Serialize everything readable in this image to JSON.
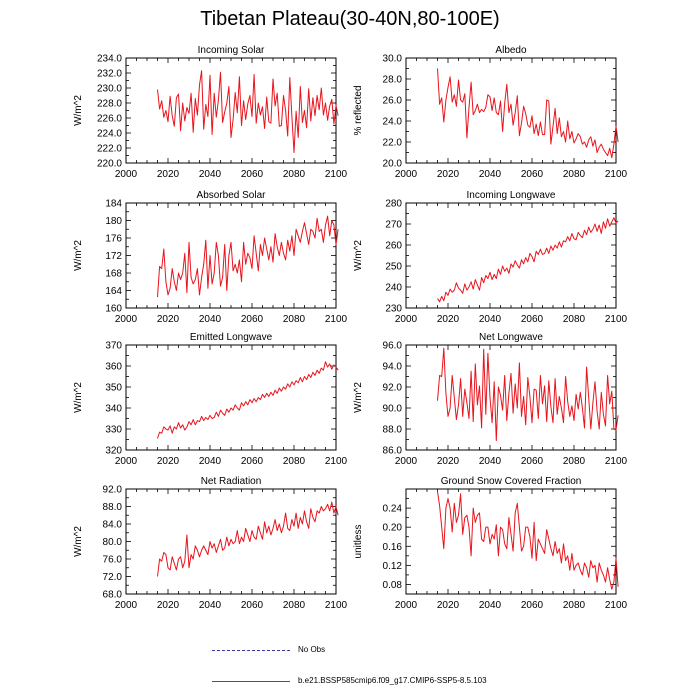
{
  "figure": {
    "title": "Tibetan Plateau(30-40N,80-100E)",
    "line_color": "#e8141c",
    "obs_color": "#3a3aa0"
  },
  "legend": {
    "obs_label": "No Obs",
    "model_label": "b.e21.BSSP585cmip6.f09_g17.CMIP6-SSP5-8.5.103"
  },
  "chart_data": [
    {
      "type": "line",
      "title": "Incoming Solar",
      "ylabel": "W/m^2",
      "xlabel": "",
      "xlim": [
        2000,
        2100
      ],
      "ylim": [
        220,
        234
      ],
      "xticks": [
        2000,
        2020,
        2040,
        2060,
        2080,
        2100
      ],
      "yticks": [
        220,
        222,
        224,
        226,
        228,
        230,
        232,
        234
      ],
      "ytick_labels": [
        "220.0",
        "222.0",
        "224.0",
        "226.0",
        "228.0",
        "230.0",
        "232.0",
        "234.0"
      ],
      "x_start": 2015,
      "values": [
        229.8,
        227.2,
        228.3,
        226.1,
        227.0,
        225.5,
        228.9,
        226.3,
        224.9,
        228.7,
        229.2,
        224.3,
        228.0,
        225.6,
        227.4,
        226.6,
        229.3,
        224.1,
        228.6,
        226.4,
        230.4,
        232.3,
        224.5,
        227.8,
        226.2,
        231.7,
        223.8,
        229.3,
        226.1,
        228.4,
        232.1,
        225.4,
        226.8,
        228.0,
        230.2,
        223.4,
        225.8,
        229.4,
        226.7,
        231.5,
        225.0,
        228.3,
        225.8,
        227.9,
        229.0,
        226.2,
        231.8,
        225.3,
        228.0,
        226.4,
        227.5,
        224.6,
        228.8,
        225.5,
        225.3,
        231.2,
        227.6,
        229.3,
        224.9,
        225.0,
        229.0,
        227.0,
        223.6,
        231.4,
        226.2,
        221.4,
        226.9,
        223.4,
        230.2,
        225.4,
        227.0,
        224.7,
        229.9,
        225.6,
        228.7,
        226.3,
        229.0,
        227.1,
        230.0,
        226.4,
        228.0,
        225.7,
        227.6,
        228.5,
        225.2,
        227.7,
        226.3
      ]
    },
    {
      "type": "line",
      "title": "Albedo",
      "ylabel": "% reflected",
      "xlabel": "",
      "xlim": [
        2000,
        2100
      ],
      "ylim": [
        20,
        30
      ],
      "xticks": [
        2000,
        2020,
        2040,
        2060,
        2080,
        2100
      ],
      "yticks": [
        20,
        22,
        24,
        26,
        28,
        30
      ],
      "ytick_labels": [
        "20.0",
        "22.0",
        "24.0",
        "26.0",
        "28.0",
        "30.0"
      ],
      "x_start": 2015,
      "values": [
        29.0,
        25.6,
        26.2,
        23.9,
        26.0,
        27.2,
        28.2,
        25.8,
        26.5,
        25.4,
        27.9,
        26.0,
        25.8,
        26.6,
        22.4,
        25.3,
        27.7,
        24.6,
        25.0,
        25.6,
        24.8,
        25.1,
        24.9,
        25.3,
        26.5,
        26.3,
        25.0,
        26.2,
        24.8,
        24.6,
        25.9,
        23.0,
        25.7,
        27.5,
        24.8,
        25.6,
        23.6,
        24.8,
        26.4,
        22.6,
        23.8,
        25.4,
        24.7,
        23.6,
        23.4,
        24.5,
        22.8,
        23.7,
        22.6,
        23.9,
        22.7,
        22.7,
        26.0,
        25.9,
        21.8,
        23.5,
        25.2,
        22.8,
        24.3,
        22.5,
        23.0,
        22.0,
        24.0,
        22.3,
        23.0,
        21.9,
        22.3,
        22.8,
        22.5,
        21.8,
        22.0,
        21.5,
        22.2,
        22.5,
        21.6,
        22.2,
        21.0,
        21.5,
        21.8,
        21.3,
        21.0,
        20.7,
        21.4,
        20.5,
        21.8,
        23.5,
        22.0
      ]
    },
    {
      "type": "line",
      "title": "Absorbed Solar",
      "ylabel": "W/m^2",
      "xlabel": "",
      "xlim": [
        2000,
        2100
      ],
      "ylim": [
        160,
        184
      ],
      "xticks": [
        2000,
        2020,
        2040,
        2060,
        2080,
        2100
      ],
      "yticks": [
        160,
        164,
        168,
        172,
        176,
        180,
        184
      ],
      "ytick_labels": [
        "160",
        "164",
        "168",
        "172",
        "176",
        "180",
        "184"
      ],
      "x_start": 2015,
      "values": [
        162.5,
        169.5,
        169.0,
        173.5,
        166.0,
        163.0,
        164.5,
        169.0,
        166.0,
        164.0,
        168.0,
        166.5,
        168.0,
        172.5,
        163.5,
        175.0,
        167.0,
        165.5,
        166.5,
        169.0,
        163.0,
        167.0,
        170.0,
        175.5,
        164.5,
        172.0,
        165.5,
        168.0,
        175.0,
        172.0,
        165.0,
        167.0,
        174.5,
        164.0,
        172.0,
        175.0,
        168.5,
        170.0,
        168.0,
        171.0,
        166.0,
        175.0,
        170.0,
        172.5,
        171.5,
        169.0,
        176.5,
        172.5,
        168.5,
        174.5,
        172.0,
        176.0,
        173.5,
        171.0,
        174.0,
        170.5,
        177.0,
        174.0,
        172.0,
        175.0,
        172.5,
        171.0,
        175.5,
        173.0,
        176.5,
        172.0,
        178.0,
        176.5,
        175.0,
        177.5,
        179.5,
        177.0,
        174.5,
        178.0,
        177.5,
        176.0,
        180.5,
        177.5,
        178.0,
        175.0,
        179.0,
        181.0,
        176.5,
        180.0,
        179.0,
        174.5,
        178.0
      ]
    },
    {
      "type": "line",
      "title": "Incoming Longwave",
      "ylabel": "W/m^2",
      "xlabel": "",
      "xlim": [
        2000,
        2100
      ],
      "ylim": [
        230,
        280
      ],
      "xticks": [
        2000,
        2020,
        2040,
        2060,
        2080,
        2100
      ],
      "yticks": [
        230,
        240,
        250,
        260,
        270,
        280
      ],
      "ytick_labels": [
        "230",
        "240",
        "250",
        "260",
        "270",
        "280"
      ],
      "x_start": 2015,
      "values": [
        234.5,
        233.0,
        235.5,
        233.5,
        237.5,
        236.0,
        239.0,
        237.5,
        238.5,
        242.0,
        239.5,
        238.5,
        237.0,
        241.5,
        238.5,
        240.0,
        242.5,
        239.0,
        243.5,
        241.0,
        238.5,
        244.5,
        242.0,
        245.5,
        244.0,
        247.0,
        243.5,
        246.0,
        244.0,
        248.5,
        246.0,
        250.0,
        247.5,
        249.0,
        246.5,
        251.0,
        249.5,
        252.5,
        250.5,
        249.0,
        253.0,
        251.0,
        254.0,
        252.0,
        256.0,
        254.5,
        252.0,
        257.0,
        255.5,
        258.0,
        255.5,
        256.0,
        258.5,
        256.0,
        259.5,
        257.5,
        260.0,
        258.5,
        261.5,
        259.0,
        262.0,
        261.5,
        264.0,
        262.0,
        265.5,
        263.0,
        262.5,
        266.0,
        264.5,
        263.5,
        267.0,
        265.0,
        268.5,
        266.0,
        267.5,
        270.0,
        266.5,
        269.5,
        265.5,
        271.0,
        268.0,
        272.5,
        269.0,
        271.0,
        273.0,
        270.5,
        271.5
      ]
    },
    {
      "type": "line",
      "title": "Emitted Longwave",
      "ylabel": "W/m^2",
      "xlabel": "",
      "xlim": [
        2000,
        2100
      ],
      "ylim": [
        320,
        370
      ],
      "xticks": [
        2000,
        2020,
        2040,
        2060,
        2080,
        2100
      ],
      "yticks": [
        320,
        330,
        340,
        350,
        360,
        370
      ],
      "ytick_labels": [
        "320",
        "330",
        "340",
        "350",
        "360",
        "370"
      ],
      "x_start": 2015,
      "values": [
        325.5,
        328.5,
        328.0,
        331.0,
        330.0,
        329.5,
        331.5,
        328.0,
        331.0,
        330.0,
        333.0,
        330.5,
        332.0,
        329.5,
        331.0,
        333.5,
        332.0,
        334.5,
        332.0,
        334.0,
        333.5,
        336.0,
        334.0,
        335.5,
        334.5,
        336.5,
        335.0,
        335.5,
        338.0,
        336.0,
        339.0,
        337.5,
        336.5,
        339.5,
        338.0,
        340.0,
        339.0,
        341.5,
        340.0,
        339.0,
        342.5,
        341.0,
        343.0,
        341.5,
        344.0,
        342.5,
        344.5,
        343.0,
        345.0,
        344.0,
        346.5,
        345.0,
        347.0,
        345.5,
        347.5,
        346.0,
        348.5,
        347.0,
        349.5,
        348.0,
        350.0,
        349.0,
        351.5,
        350.0,
        352.5,
        351.0,
        353.0,
        352.0,
        354.5,
        352.5,
        355.0,
        353.5,
        356.0,
        354.5,
        357.0,
        355.5,
        358.0,
        356.5,
        359.0,
        358.0,
        362.0,
        359.5,
        361.0,
        358.5,
        360.5,
        359.5,
        358.0
      ]
    },
    {
      "type": "line",
      "title": "Net Longwave",
      "ylabel": "W/m^2",
      "xlabel": "",
      "xlim": [
        2000,
        2100
      ],
      "ylim": [
        86,
        96
      ],
      "xticks": [
        2000,
        2020,
        2040,
        2060,
        2080,
        2100
      ],
      "yticks": [
        86,
        88,
        90,
        92,
        94,
        96
      ],
      "ytick_labels": [
        "86.0",
        "88.0",
        "90.0",
        "92.0",
        "94.0",
        "96.0"
      ],
      "x_start": 2015,
      "values": [
        90.7,
        93.1,
        93.0,
        95.7,
        91.4,
        89.2,
        90.0,
        93.1,
        91.0,
        88.9,
        90.3,
        92.8,
        89.2,
        91.8,
        90.5,
        89.0,
        93.5,
        88.7,
        94.2,
        90.3,
        92.1,
        88.1,
        95.6,
        89.4,
        95.2,
        91.0,
        88.6,
        92.5,
        86.9,
        92.0,
        91.2,
        89.8,
        93.1,
        88.8,
        91.4,
        93.3,
        89.5,
        92.3,
        90.0,
        94.3,
        89.2,
        91.1,
        88.4,
        92.9,
        91.1,
        88.6,
        91.8,
        91.7,
        89.0,
        93.1,
        90.4,
        92.1,
        88.7,
        92.6,
        90.1,
        88.6,
        92.8,
        89.4,
        91.1,
        90.0,
        88.6,
        93.0,
        90.6,
        89.2,
        90.2,
        88.8,
        91.3,
        89.9,
        91.5,
        90.0,
        88.1,
        93.9,
        91.0,
        88.0,
        90.5,
        92.5,
        89.7,
        88.0,
        91.5,
        89.4,
        88.3,
        93.1,
        90.4,
        91.6,
        88.0,
        87.9,
        89.3
      ]
    },
    {
      "type": "line",
      "title": "Net Radiation",
      "ylabel": "W/m^2",
      "xlabel": "",
      "xlim": [
        2000,
        2100
      ],
      "ylim": [
        68,
        92
      ],
      "xticks": [
        2000,
        2020,
        2040,
        2060,
        2080,
        2100
      ],
      "yticks": [
        68,
        72,
        76,
        80,
        84,
        88,
        92
      ],
      "ytick_labels": [
        "68.0",
        "72.0",
        "76.0",
        "80.0",
        "84.0",
        "88.0",
        "92.0"
      ],
      "x_start": 2015,
      "values": [
        72.0,
        76.0,
        75.5,
        77.5,
        77.0,
        74.0,
        73.5,
        76.5,
        75.0,
        73.5,
        76.0,
        76.5,
        74.0,
        75.5,
        81.5,
        74.0,
        77.0,
        76.0,
        79.0,
        78.0,
        76.5,
        78.0,
        79.0,
        78.0,
        77.0,
        80.0,
        78.5,
        79.5,
        77.5,
        79.0,
        80.5,
        78.0,
        78.5,
        81.0,
        79.0,
        80.5,
        79.5,
        80.0,
        82.5,
        79.5,
        81.0,
        80.0,
        83.0,
        81.5,
        80.0,
        82.5,
        81.0,
        80.5,
        83.5,
        82.0,
        80.5,
        84.5,
        82.0,
        83.5,
        81.5,
        83.0,
        85.0,
        82.5,
        84.0,
        82.0,
        83.5,
        86.5,
        83.0,
        82.5,
        85.0,
        83.5,
        86.5,
        83.0,
        85.5,
        84.0,
        87.0,
        84.5,
        83.0,
        87.5,
        85.5,
        84.5,
        87.0,
        86.5,
        88.0,
        87.0,
        87.5,
        88.5,
        87.0,
        89.0,
        86.5,
        88.0,
        86.0
      ]
    },
    {
      "type": "line",
      "title": "Ground Snow Covered Fraction",
      "ylabel": "unitless",
      "xlabel": "",
      "xlim": [
        2000,
        2100
      ],
      "ylim": [
        0.06,
        0.28
      ],
      "xticks": [
        2000,
        2020,
        2040,
        2060,
        2080,
        2100
      ],
      "yticks": [
        0.08,
        0.12,
        0.16,
        0.2,
        0.24
      ],
      "ytick_labels": [
        "0.08",
        "0.12",
        "0.16",
        "0.20",
        "0.24"
      ],
      "x_start": 2015,
      "values": [
        0.275,
        0.245,
        0.2,
        0.155,
        0.24,
        0.26,
        0.24,
        0.19,
        0.25,
        0.21,
        0.225,
        0.27,
        0.185,
        0.22,
        0.225,
        0.2,
        0.14,
        0.24,
        0.21,
        0.225,
        0.23,
        0.175,
        0.17,
        0.2,
        0.2,
        0.165,
        0.185,
        0.175,
        0.205,
        0.14,
        0.2,
        0.195,
        0.165,
        0.155,
        0.22,
        0.185,
        0.15,
        0.23,
        0.25,
        0.2,
        0.15,
        0.16,
        0.2,
        0.2,
        0.18,
        0.135,
        0.21,
        0.13,
        0.175,
        0.165,
        0.155,
        0.145,
        0.195,
        0.175,
        0.155,
        0.14,
        0.17,
        0.145,
        0.155,
        0.125,
        0.165,
        0.13,
        0.14,
        0.11,
        0.145,
        0.11,
        0.12,
        0.125,
        0.11,
        0.1,
        0.125,
        0.115,
        0.095,
        0.13,
        0.115,
        0.12,
        0.085,
        0.125,
        0.11,
        0.1,
        0.085,
        0.115,
        0.09,
        0.07,
        0.085,
        0.135,
        0.075
      ]
    }
  ]
}
